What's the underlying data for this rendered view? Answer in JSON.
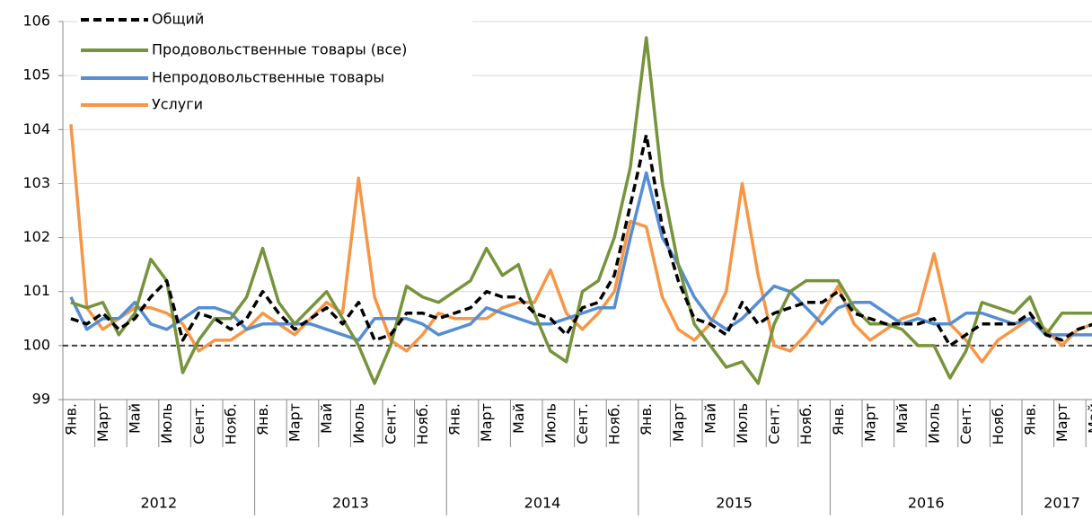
{
  "chart_data": {
    "type": "line",
    "categories": [
      "Янв.",
      null,
      "Март",
      null,
      "Май",
      null,
      "Июль",
      null,
      "Сент.",
      null,
      "Нояб.",
      null,
      "Янв.",
      null,
      "Март",
      null,
      "Май",
      null,
      "Июль",
      null,
      "Сент.",
      null,
      "Нояб.",
      null,
      "Янв.",
      null,
      "Март",
      null,
      "Май",
      null,
      "Июль",
      null,
      "Сент.",
      null,
      "Нояб.",
      null,
      "Янв.",
      null,
      "Март",
      null,
      "Май",
      null,
      "Июль",
      null,
      "Сент.",
      null,
      "Нояб.",
      null,
      "Янв.",
      null,
      "Март",
      null,
      "Май",
      null,
      "Июль",
      null,
      "Сент.",
      null,
      "Нояб.",
      null,
      "Янв.",
      null,
      "Март",
      null,
      "Май"
    ],
    "years": [
      "2012",
      "2013",
      "2014",
      "2015",
      "2016",
      "2017"
    ],
    "ylim": [
      99,
      106
    ],
    "yticks": [
      99,
      100,
      101,
      102,
      103,
      104,
      105,
      106
    ],
    "grid": true,
    "reference_line": 100,
    "series": [
      {
        "name": "Общий",
        "color": "#000000",
        "dashed": true,
        "values": [
          100.5,
          100.4,
          100.6,
          100.3,
          100.5,
          100.9,
          101.2,
          100.1,
          100.6,
          100.5,
          100.3,
          100.5,
          101.0,
          100.6,
          100.3,
          100.5,
          100.7,
          100.4,
          100.8,
          100.1,
          100.2,
          100.6,
          100.6,
          100.5,
          100.6,
          100.7,
          101.0,
          100.9,
          100.9,
          100.6,
          100.5,
          100.2,
          100.7,
          100.8,
          101.3,
          102.6,
          103.9,
          102.2,
          101.2,
          100.5,
          100.4,
          100.2,
          100.8,
          100.4,
          100.6,
          100.7,
          100.8,
          100.8,
          101.0,
          100.6,
          100.5,
          100.4,
          100.4,
          100.4,
          100.5,
          100.0,
          100.2,
          100.4,
          100.4,
          100.4,
          100.6,
          100.2,
          100.1,
          100.3,
          100.4
        ]
      },
      {
        "name": "Продовольственные товары (все)",
        "color": "#77933c",
        "dashed": false,
        "values": [
          100.8,
          100.7,
          100.8,
          100.2,
          100.6,
          101.6,
          101.2,
          99.5,
          100.1,
          100.5,
          100.5,
          100.9,
          101.8,
          100.8,
          100.4,
          100.7,
          101.0,
          100.5,
          100.0,
          99.3,
          100.0,
          101.1,
          100.9,
          100.8,
          101.0,
          101.2,
          101.8,
          101.3,
          101.5,
          100.6,
          99.9,
          99.7,
          101.0,
          101.2,
          102.0,
          103.3,
          105.7,
          103.0,
          101.5,
          100.4,
          100.0,
          99.6,
          99.7,
          99.3,
          100.4,
          101.0,
          101.2,
          101.2,
          101.2,
          100.7,
          100.4,
          100.4,
          100.3,
          100.0,
          100.0,
          99.4,
          99.9,
          100.8,
          100.7,
          100.6,
          100.9,
          100.2,
          100.6,
          100.6,
          100.6
        ]
      },
      {
        "name": "Непродовольственные товары",
        "color": "#558ed5",
        "dashed": false,
        "values": [
          100.9,
          100.3,
          100.5,
          100.5,
          100.8,
          100.4,
          100.3,
          100.5,
          100.7,
          100.7,
          100.6,
          100.3,
          100.4,
          100.4,
          100.4,
          100.4,
          100.3,
          100.2,
          100.1,
          100.5,
          100.5,
          100.5,
          100.4,
          100.2,
          100.3,
          100.4,
          100.7,
          100.6,
          100.5,
          100.4,
          100.4,
          100.5,
          100.6,
          100.7,
          100.7,
          102.0,
          103.2,
          102.0,
          101.5,
          100.9,
          100.5,
          100.3,
          100.5,
          100.8,
          101.1,
          101.0,
          100.7,
          100.4,
          100.7,
          100.8,
          100.8,
          100.6,
          100.4,
          100.5,
          100.4,
          100.4,
          100.6,
          100.6,
          100.5,
          100.4,
          100.5,
          100.2,
          100.2,
          100.2,
          100.2
        ]
      },
      {
        "name": "Услуги",
        "color": "#f79646",
        "dashed": false,
        "values": [
          104.1,
          100.7,
          100.3,
          100.5,
          100.7,
          100.7,
          100.6,
          100.4,
          99.9,
          100.1,
          100.1,
          100.3,
          100.6,
          100.4,
          100.2,
          100.5,
          100.8,
          100.6,
          103.1,
          100.9,
          100.1,
          99.9,
          100.2,
          100.6,
          100.5,
          100.5,
          100.5,
          100.7,
          100.8,
          100.8,
          101.4,
          100.6,
          100.3,
          100.6,
          101.0,
          102.3,
          102.2,
          100.9,
          100.3,
          100.1,
          100.4,
          101.0,
          103.0,
          101.3,
          100.0,
          99.9,
          100.2,
          100.6,
          101.1,
          100.4,
          100.1,
          100.3,
          100.5,
          100.6,
          101.7,
          100.4,
          100.1,
          99.7,
          100.1,
          100.3,
          100.5,
          100.3,
          100.0,
          100.3,
          100.4
        ]
      }
    ]
  }
}
